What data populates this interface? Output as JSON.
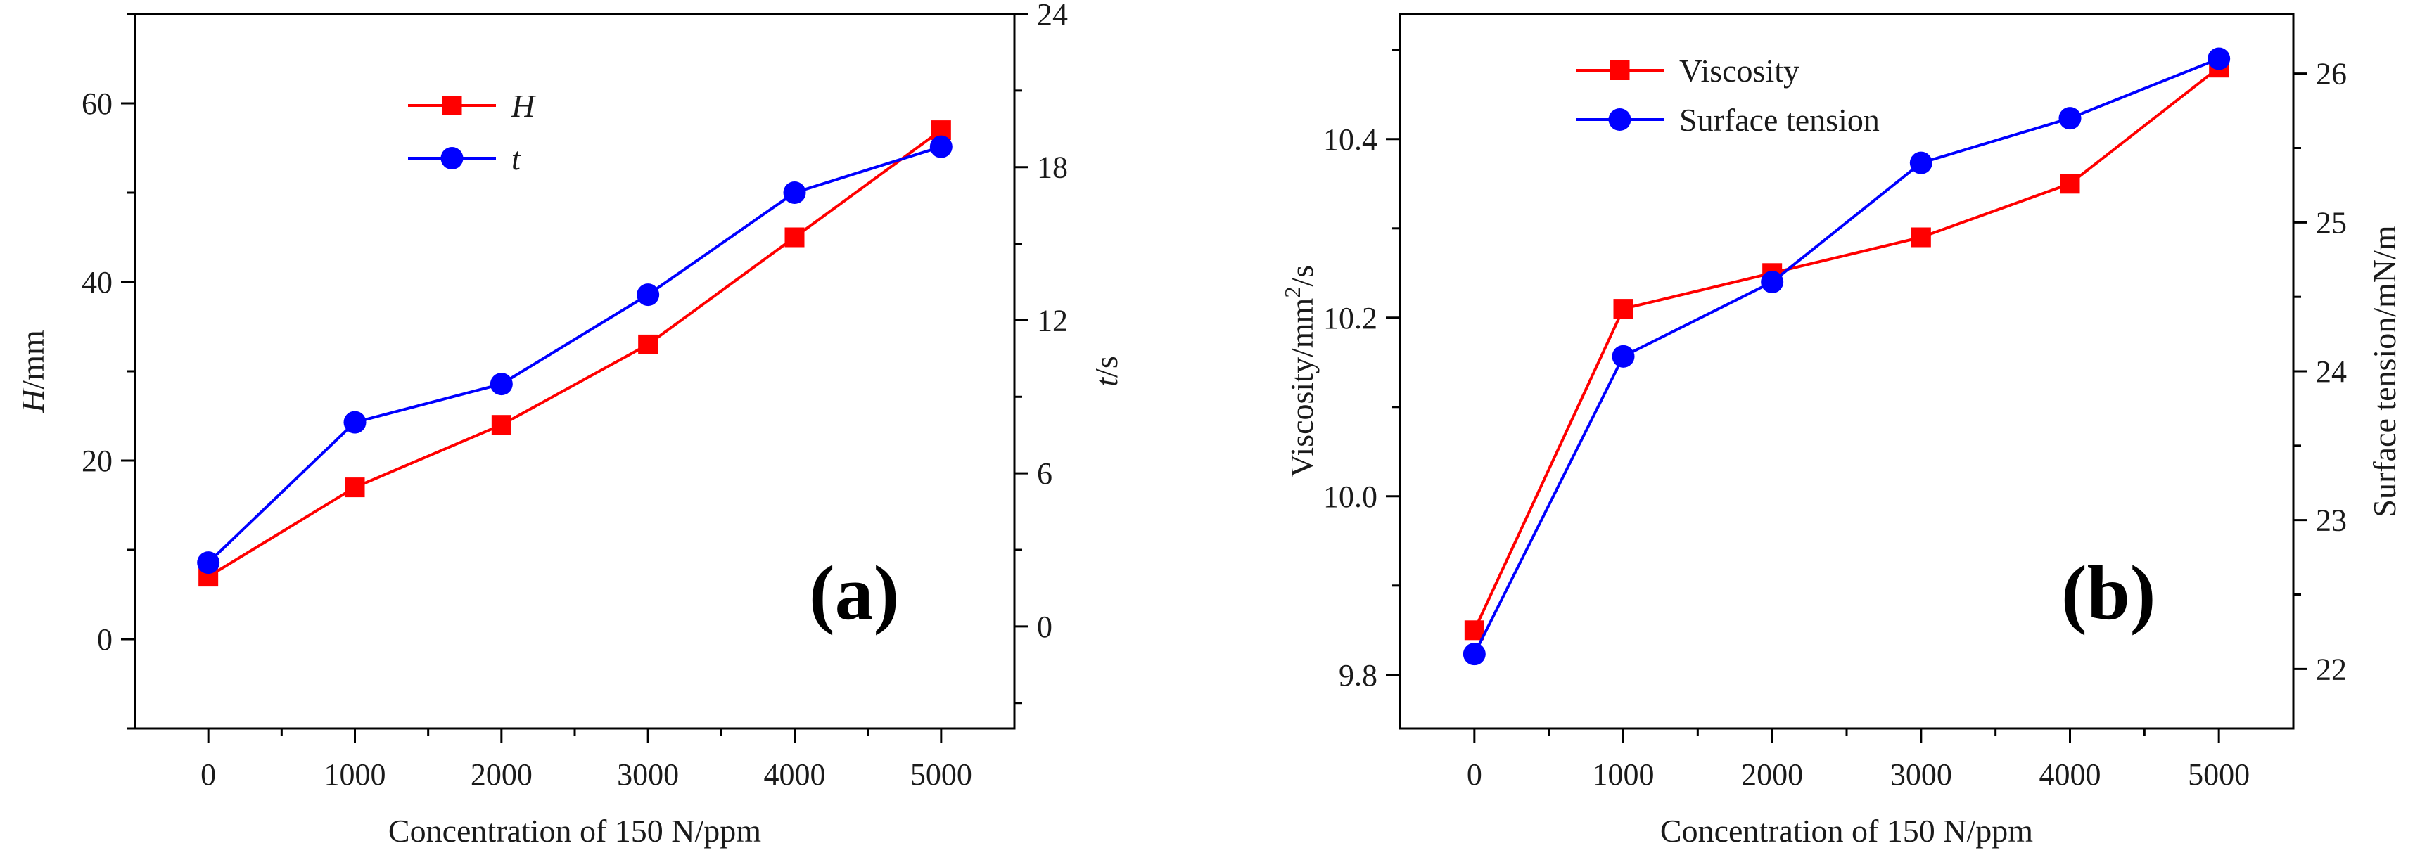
{
  "chart_data": [
    {
      "type": "line",
      "panel_label": "(a)",
      "x": [
        0,
        1000,
        2000,
        3000,
        4000,
        5000
      ],
      "x_tick_labels": [
        "0",
        "1000",
        "2000",
        "3000",
        "4000",
        "5000"
      ],
      "xlabel": "Concentration of 150 N/ppm",
      "xlim": [
        -500,
        5500
      ],
      "y_left": {
        "label_italic": "H",
        "label_rest": "/mm",
        "lim": [
          -10,
          70
        ],
        "ticks": [
          0,
          20,
          40,
          60
        ],
        "minor_ticks": [
          -10,
          10,
          30,
          50,
          70
        ]
      },
      "y_right": {
        "label_italic": "t",
        "label_rest": "/s",
        "lim": [
          -4,
          24
        ],
        "ticks": [
          0,
          6,
          12,
          18,
          24
        ],
        "minor_ticks": [
          -3,
          3,
          9,
          15,
          21
        ]
      },
      "series": [
        {
          "name": "H",
          "axis": "left",
          "marker": "square",
          "color": "#ff0000",
          "values": [
            7,
            17,
            24,
            33,
            45,
            57
          ]
        },
        {
          "name": "t",
          "axis": "right",
          "marker": "circle",
          "color": "#0000ff",
          "values": [
            2.5,
            8,
            9.5,
            13,
            17,
            18.8
          ]
        }
      ],
      "legend_position": "top-left"
    },
    {
      "type": "line",
      "panel_label": "(b)",
      "x": [
        0,
        1000,
        2000,
        3000,
        4000,
        5000
      ],
      "x_tick_labels": [
        "0",
        "1000",
        "2000",
        "3000",
        "4000",
        "5000"
      ],
      "xlabel": "Concentration of 150 N/ppm",
      "xlim": [
        -500,
        5500
      ],
      "y_left": {
        "label_main": "Viscosity/mm",
        "label_sup": "2",
        "label_tail": "/s",
        "lim": [
          9.74,
          10.54
        ],
        "ticks": [
          9.8,
          10.0,
          10.2,
          10.4
        ],
        "tick_labels": [
          "9.8",
          "10.0",
          "10.2",
          "10.4"
        ],
        "minor_ticks": [
          9.9,
          10.1,
          10.3,
          10.5
        ]
      },
      "y_right": {
        "label": "Surface tension/mN/m",
        "lim": [
          21.6,
          26.4
        ],
        "ticks": [
          22,
          23,
          24,
          25,
          26
        ],
        "minor_ticks": [
          22.5,
          23.5,
          24.5,
          25.5
        ]
      },
      "series": [
        {
          "name": "Viscosity",
          "axis": "left",
          "marker": "square",
          "color": "#ff0000",
          "values": [
            9.85,
            10.21,
            10.25,
            10.29,
            10.35,
            10.48
          ]
        },
        {
          "name": "Surface tension",
          "axis": "right",
          "marker": "circle",
          "color": "#0000ff",
          "values": [
            22.1,
            24.1,
            24.6,
            25.4,
            25.7,
            26.1
          ]
        }
      ],
      "legend_position": "top-left"
    }
  ]
}
